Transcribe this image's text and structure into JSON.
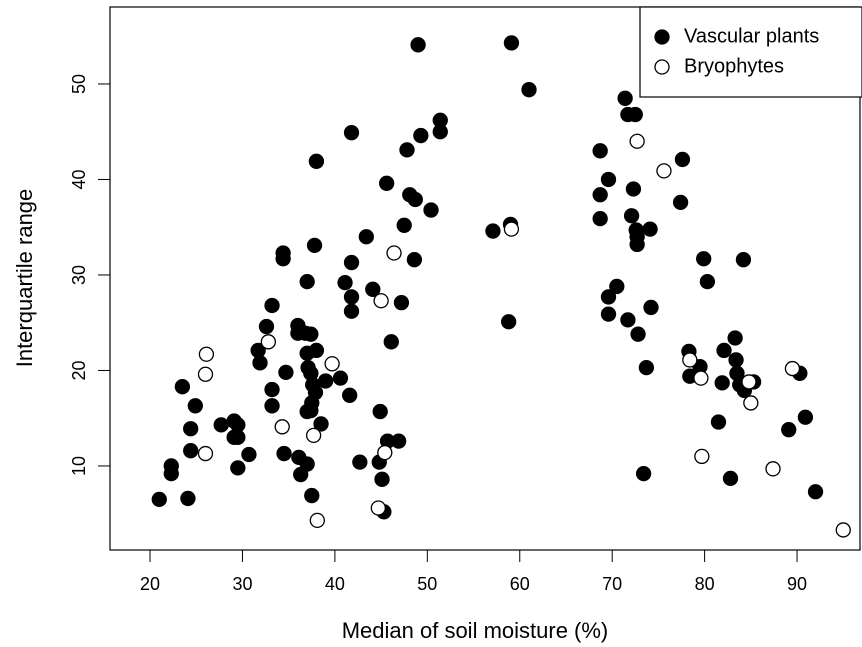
{
  "chart_data": {
    "type": "scatter",
    "x_label": "Median of soil moisture (%)",
    "y_label": "Interquartile range",
    "xlim": [
      15.67,
      96.81
    ],
    "ylim": [
      1.2,
      58.06
    ],
    "xticks": [
      20,
      30,
      40,
      50,
      60,
      70,
      80,
      90
    ],
    "yticks": [
      10,
      20,
      30,
      40,
      50
    ],
    "grid": false,
    "legend": "top right",
    "series": [
      {
        "name": "Vascular plants",
        "color": "#000000",
        "filled": true,
        "x": [
          21.0,
          22.3,
          22.3,
          23.5,
          24.1,
          24.4,
          24.4,
          24.9,
          27.7,
          29.1,
          29.1,
          29.5,
          29.5,
          29.5,
          30.7,
          31.7,
          31.9,
          32.6,
          33.2,
          33.2,
          33.2,
          34.4,
          34.4,
          34.5,
          34.7,
          36.0,
          36.0,
          36.1,
          36.3,
          36.8,
          37.0,
          37.0,
          37.0,
          37.0,
          37.1,
          37.4,
          37.4,
          37.4,
          37.5,
          37.5,
          37.6,
          37.9,
          37.8,
          38.0,
          38.0,
          38.5,
          39.0,
          40.6,
          41.1,
          41.6,
          41.8,
          41.8,
          41.8,
          41.8,
          42.7,
          43.4,
          44.1,
          44.8,
          44.9,
          45.1,
          45.3,
          45.6,
          45.7,
          46.1,
          46.9,
          47.2,
          47.5,
          47.8,
          48.1,
          48.6,
          48.7,
          49.0,
          49.3,
          50.4,
          51.4,
          51.4,
          57.1,
          59.1,
          59.0,
          58.8,
          61.0,
          68.7,
          68.7,
          68.7,
          69.6,
          69.6,
          69.6,
          70.5,
          71.4,
          71.7,
          71.7,
          72.5,
          72.3,
          72.1,
          72.6,
          72.7,
          72.7,
          72.8,
          73.4,
          73.7,
          74.1,
          74.2,
          77.6,
          77.4,
          78.3,
          78.4,
          79.5,
          79.9,
          80.3,
          81.5,
          81.9,
          82.1,
          82.8,
          83.3,
          83.4,
          83.5,
          83.8,
          84.3,
          84.2,
          85.3,
          89.1,
          90.3,
          90.9,
          92.0
        ],
        "values": [
          6.5,
          10.0,
          9.2,
          18.3,
          6.6,
          13.9,
          11.6,
          16.3,
          14.3,
          14.7,
          13.0,
          14.3,
          9.8,
          13.0,
          11.2,
          22.1,
          20.8,
          24.6,
          26.8,
          18.0,
          16.3,
          32.3,
          31.7,
          11.3,
          19.8,
          23.9,
          24.7,
          10.9,
          9.1,
          23.9,
          29.3,
          21.8,
          10.2,
          15.7,
          20.3,
          19.7,
          23.8,
          15.8,
          6.9,
          16.6,
          18.5,
          17.7,
          33.1,
          22.1,
          41.9,
          14.4,
          18.9,
          19.2,
          29.2,
          17.4,
          31.3,
          27.7,
          26.2,
          44.9,
          10.4,
          34.0,
          28.5,
          10.4,
          15.7,
          8.6,
          5.2,
          39.6,
          12.6,
          23.0,
          12.6,
          27.1,
          35.2,
          43.1,
          38.4,
          31.6,
          37.9,
          54.1,
          44.6,
          36.8,
          46.2,
          45.0,
          34.6,
          54.3,
          35.3,
          25.1,
          49.4,
          43.0,
          38.4,
          35.9,
          40.0,
          27.7,
          25.9,
          28.8,
          48.5,
          25.3,
          46.8,
          46.8,
          39.0,
          36.2,
          34.7,
          34.0,
          33.2,
          23.8,
          9.2,
          20.3,
          34.8,
          26.6,
          42.1,
          37.6,
          22.0,
          19.4,
          20.4,
          31.7,
          29.3,
          14.6,
          18.7,
          22.1,
          8.7,
          23.4,
          21.1,
          19.7,
          18.5,
          17.9,
          31.6,
          18.8,
          13.8,
          19.7,
          15.1,
          7.3
        ]
      },
      {
        "name": "Bryophytes",
        "color": "#000000",
        "filled": false,
        "x": [
          26.1,
          26.0,
          26.0,
          32.8,
          34.3,
          37.7,
          38.1,
          39.7,
          44.7,
          45.0,
          45.4,
          46.4,
          59.1,
          72.7,
          75.6,
          78.4,
          79.6,
          79.7,
          84.8,
          85.0,
          87.4,
          89.5,
          95.0
        ],
        "values": [
          21.7,
          19.6,
          11.3,
          23.0,
          14.1,
          13.2,
          4.3,
          20.7,
          5.6,
          27.3,
          11.4,
          32.3,
          34.8,
          44.0,
          40.9,
          21.1,
          19.2,
          11.0,
          18.8,
          16.6,
          9.7,
          20.2,
          3.3
        ]
      }
    ]
  }
}
